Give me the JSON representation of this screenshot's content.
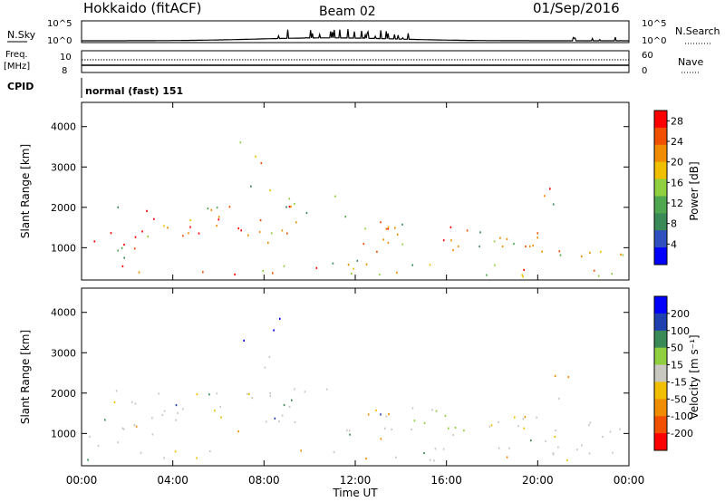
{
  "header": {
    "title": "Hokkaido (fitACF)",
    "beam": "Beam 02",
    "date": "01/Sep/2016"
  },
  "top_panels": {
    "nsky_label": "N.Sky",
    "nsearch_label": "N.Search",
    "freq_label": "Freq.",
    "freq_unit": "[MHz]",
    "nave_label": "Nave",
    "cpid_label": "CPID",
    "cpid_value": "normal (fast) 151",
    "left_ticks_noise": [
      "10^5",
      "10^0"
    ],
    "right_ticks_noise": [
      "10^5",
      "10^0"
    ],
    "left_ticks_freq": [
      "10",
      "8"
    ],
    "right_ticks_nave": [
      "60",
      "0"
    ]
  },
  "colors": {
    "power_scale": [
      "#0000ff",
      "#3050c0",
      "#3a8a58",
      "#4fa84f",
      "#90d040",
      "#f0c000",
      "#f08c00",
      "#f05000",
      "#ff0000"
    ],
    "velocity_scale": [
      "#ff0000",
      "#f05000",
      "#f08c00",
      "#f0c000",
      "#c8c8c0",
      "#90d040",
      "#3a8a58",
      "#2040b0",
      "#0000ff"
    ]
  },
  "chart_data": [
    {
      "type": "heatmap",
      "name": "power",
      "ylabel": "Slant Range [km]",
      "y_ticks": [
        1000,
        2000,
        3000,
        4000
      ],
      "ylim": [
        200,
        4600
      ],
      "x_ticks": [
        "00:00",
        "04:00",
        "08:00",
        "12:00",
        "16:00",
        "20:00",
        "00:00"
      ],
      "xlim_hours": [
        0,
        24
      ],
      "colorbar_label": "Power [dB]",
      "colorbar_ticks": [
        4,
        8,
        12,
        16,
        20,
        24,
        28
      ],
      "colorbar_range": [
        0,
        30
      ]
    },
    {
      "type": "heatmap",
      "name": "velocity",
      "ylabel": "Slant Range [km]",
      "y_ticks": [
        1000,
        2000,
        3000,
        4000
      ],
      "ylim": [
        200,
        4600
      ],
      "x_ticks": [
        "00:00",
        "04:00",
        "08:00",
        "12:00",
        "16:00",
        "20:00",
        "00:00"
      ],
      "xlim_hours": [
        0,
        24
      ],
      "xlabel": "Time UT",
      "colorbar_label": "Velocity [m s⁻¹]",
      "colorbar_ticks": [
        200,
        100,
        50,
        15,
        -15,
        -50,
        -100,
        -200
      ],
      "colorbar_range": [
        -250,
        250
      ]
    }
  ]
}
